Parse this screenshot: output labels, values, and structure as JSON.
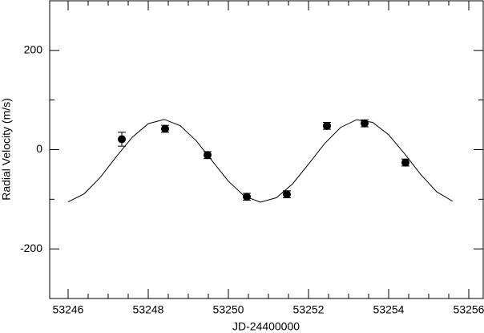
{
  "chart_data": {
    "type": "scatter",
    "x_label": "JD-24400000",
    "y_label": "Radial Velocity (m/s)",
    "xlim": [
      53245.54,
      53256.36
    ],
    "ylim": [
      -300,
      300
    ],
    "xticks": [
      53246,
      53248,
      53250,
      53252,
      53254,
      53256
    ],
    "yticks": [
      -200,
      0,
      200
    ],
    "color": "#000000",
    "x": [
      53247.34,
      53248.42,
      53249.48,
      53250.46,
      53251.46,
      53252.46,
      53253.4,
      53254.42
    ],
    "values": [
      21,
      42,
      -11,
      -95,
      -90,
      48,
      53,
      -26
    ],
    "errors": [
      14,
      7,
      7,
      7,
      7,
      7,
      7,
      7
    ],
    "fit": {
      "type": "line",
      "x": [
        53246.0,
        53246.4,
        53246.8,
        53247.2,
        53247.6,
        53248.0,
        53248.4,
        53248.8,
        53249.2,
        53249.6,
        53250.0,
        53250.4,
        53250.8,
        53251.2,
        53251.6,
        53252.0,
        53252.4,
        53252.8,
        53253.2,
        53253.6,
        53254.0,
        53254.4,
        53254.8,
        53255.2,
        53255.6
      ],
      "values": [
        -105.2,
        -89.0,
        -56.1,
        -14.5,
        24.9,
        52.4,
        60.9,
        48.2,
        17.7,
        -23.1,
        -63.6,
        -93.8,
        -105.9,
        -96.9,
        -69.1,
        -29.3,
        12.0,
        44.7,
        60.3,
        55.0,
        30.0,
        -8.3,
        -50.1,
        -85.0,
        -104.1
      ]
    }
  }
}
